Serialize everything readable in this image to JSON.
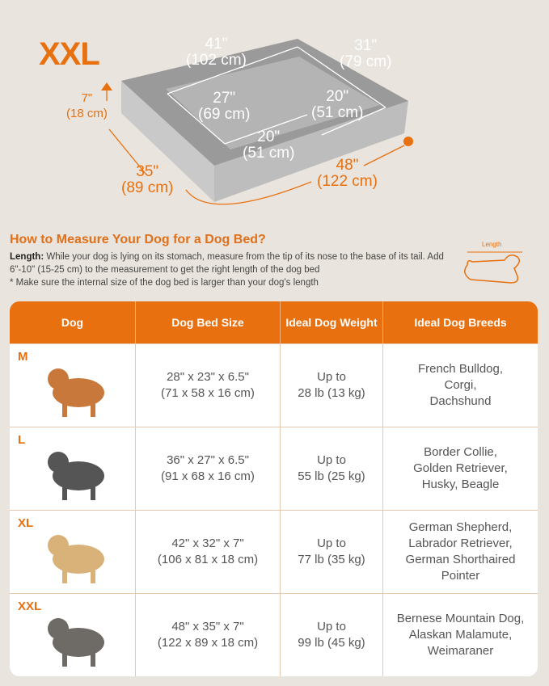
{
  "hero": {
    "size": "XXL",
    "dims": {
      "outer_length": "41\"",
      "outer_length_cm": "(102 cm)",
      "outer_width": "31\"",
      "outer_width_cm": "(79 cm)",
      "inner_length": "27\"",
      "inner_length_cm": "(69 cm)",
      "inner_width": "20\"",
      "inner_width_cm": "(51 cm)",
      "front_width": "20\"",
      "front_width_cm": "(51 cm)",
      "height": "7\"",
      "height_cm": "(18 cm)",
      "depth": "35\"",
      "depth_cm": "(89 cm)",
      "total_length": "48\"",
      "total_length_cm": "(122 cm)"
    }
  },
  "measure": {
    "title": "How to Measure Your Dog for a Dog Bed?",
    "length_label": "Length:",
    "length_text": " While your dog is lying on its stomach, measure from the tip of its nose to the base of its tail. Add 6\"-10\" (15-25 cm) to the measurement to get the right length of the dog bed",
    "note": "* Make sure the internal size of the dog bed is larger than your dog's length",
    "icon_label": "Length"
  },
  "table": {
    "headers": [
      "Dog",
      "Dog Bed Size",
      "Ideal Dog Weight",
      "Ideal Dog Breeds"
    ],
    "rows": [
      {
        "size": "M",
        "bed": [
          "28\" x 23\" x 6.5\"",
          "(71 x 58 x 16 cm)"
        ],
        "weight": [
          "Up to",
          "28 lb (13 kg)"
        ],
        "breeds": [
          "French Bulldog,",
          "Corgi,",
          "Dachshund"
        ],
        "dog_color": "#c8783a"
      },
      {
        "size": "L",
        "bed": [
          "36\" x 27\" x 6.5\"",
          "(91 x 68 x 16 cm)"
        ],
        "weight": [
          "Up to",
          "55 lb (25 kg)"
        ],
        "breeds": [
          "Border Collie,",
          "Golden Retriever,",
          "Husky, Beagle"
        ],
        "dog_color": "#555555"
      },
      {
        "size": "XL",
        "bed": [
          "42\" x 32\" x 7\"",
          "(106 x 81 x 18 cm)"
        ],
        "weight": [
          "Up to",
          "77 lb (35 kg)"
        ],
        "breeds": [
          "German Shepherd,",
          "Labrador Retriever,",
          "German Shorthaired",
          "Pointer"
        ],
        "dog_color": "#d9b27a"
      },
      {
        "size": "XXL",
        "bed": [
          "48\" x 35\" x 7\"",
          "(122 x 89 x 18 cm)"
        ],
        "weight": [
          "Up to",
          "99 lb (45 kg)"
        ],
        "breeds": [
          "Bernese Mountain Dog,",
          "Alaskan Malamute,",
          "Weimaraner"
        ],
        "dog_color": "#6e6a66"
      }
    ]
  },
  "colors": {
    "accent": "#e8700f",
    "background": "#e9e4dd"
  }
}
